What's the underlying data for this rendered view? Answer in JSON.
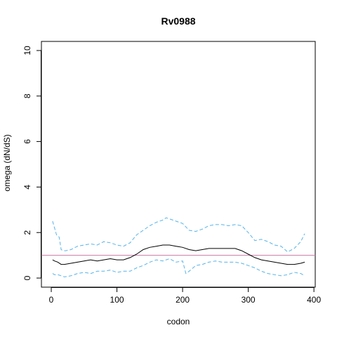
{
  "chart_data": {
    "type": "line",
    "title": "Rv0988",
    "xlabel": "codon",
    "ylabel": "omega (dN/dS)",
    "xlim": [
      -15,
      402
    ],
    "ylim": [
      -0.4,
      10.4
    ],
    "x_ticks": [
      0,
      100,
      200,
      300,
      400
    ],
    "y_ticks": [
      0,
      2,
      4,
      6,
      8,
      10
    ],
    "grid": false,
    "reference_line": {
      "y": 1,
      "color": "#cc79a7"
    },
    "series": [
      {
        "role": "upper",
        "color": "#56b4e9",
        "style": "dashed",
        "x": [
          2,
          5,
          8,
          12,
          15,
          18,
          22,
          30,
          40,
          50,
          60,
          70,
          80,
          90,
          100,
          110,
          120,
          130,
          140,
          150,
          160,
          170,
          175,
          180,
          190,
          200,
          210,
          220,
          230,
          240,
          250,
          260,
          270,
          280,
          290,
          300,
          310,
          320,
          330,
          340,
          350,
          360,
          370,
          375,
          380,
          386
        ],
        "y": [
          2.5,
          2.2,
          1.9,
          1.8,
          1.25,
          1.2,
          1.2,
          1.25,
          1.4,
          1.45,
          1.5,
          1.45,
          1.6,
          1.55,
          1.45,
          1.4,
          1.55,
          1.9,
          2.1,
          2.3,
          2.45,
          2.55,
          2.65,
          2.6,
          2.5,
          2.4,
          2.1,
          2.05,
          2.15,
          2.3,
          2.35,
          2.35,
          2.3,
          2.35,
          2.3,
          2.0,
          1.65,
          1.7,
          1.6,
          1.45,
          1.4,
          1.15,
          1.3,
          1.45,
          1.6,
          1.95
        ]
      },
      {
        "role": "estimate",
        "color": "#000000",
        "style": "solid",
        "x": [
          2,
          5,
          10,
          15,
          20,
          30,
          40,
          50,
          60,
          70,
          80,
          90,
          100,
          110,
          120,
          130,
          140,
          150,
          160,
          170,
          180,
          190,
          200,
          210,
          220,
          230,
          240,
          250,
          260,
          270,
          280,
          290,
          300,
          310,
          320,
          330,
          340,
          350,
          360,
          370,
          380,
          386
        ],
        "y": [
          0.8,
          0.75,
          0.7,
          0.6,
          0.6,
          0.65,
          0.7,
          0.75,
          0.8,
          0.75,
          0.8,
          0.85,
          0.8,
          0.8,
          0.9,
          1.05,
          1.25,
          1.35,
          1.4,
          1.45,
          1.45,
          1.4,
          1.35,
          1.25,
          1.2,
          1.25,
          1.3,
          1.3,
          1.3,
          1.3,
          1.3,
          1.2,
          1.05,
          0.9,
          0.8,
          0.75,
          0.7,
          0.65,
          0.6,
          0.6,
          0.65,
          0.7
        ]
      },
      {
        "role": "lower",
        "color": "#56b4e9",
        "style": "dashed",
        "x": [
          2,
          5,
          10,
          15,
          20,
          30,
          40,
          50,
          60,
          70,
          80,
          90,
          100,
          110,
          120,
          130,
          140,
          150,
          160,
          170,
          180,
          190,
          200,
          205,
          210,
          220,
          230,
          240,
          250,
          260,
          270,
          280,
          290,
          300,
          310,
          320,
          330,
          340,
          350,
          360,
          370,
          380,
          386
        ],
        "y": [
          0.2,
          0.15,
          0.15,
          0.1,
          0.05,
          0.1,
          0.2,
          0.25,
          0.2,
          0.3,
          0.3,
          0.35,
          0.25,
          0.3,
          0.3,
          0.45,
          0.55,
          0.7,
          0.8,
          0.75,
          0.85,
          0.7,
          0.75,
          0.2,
          0.3,
          0.55,
          0.6,
          0.7,
          0.75,
          0.7,
          0.7,
          0.7,
          0.65,
          0.55,
          0.45,
          0.3,
          0.2,
          0.15,
          0.1,
          0.15,
          0.25,
          0.2,
          0.1
        ]
      }
    ]
  }
}
